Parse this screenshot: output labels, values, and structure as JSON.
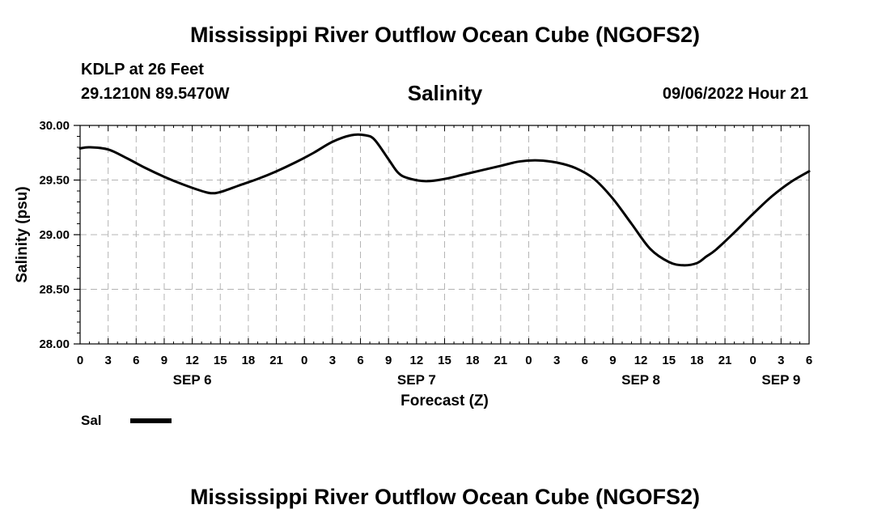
{
  "header": {
    "title": "Mississippi River Outflow Ocean Cube (NGOFS2)",
    "station": "KDLP at 26 Feet",
    "coords": "29.1210N  89.5470W",
    "subtitle": "Salinity",
    "datetime": "09/06/2022 Hour 21"
  },
  "footer": {
    "title": "Mississippi River Outflow Ocean Cube (NGOFS2)"
  },
  "legend": {
    "label": "Sal",
    "color": "#000000"
  },
  "chart_data": {
    "type": "line",
    "title": "Salinity",
    "xlabel": "Forecast (Z)",
    "ylabel": "Salinity (psu)",
    "x_unit": "hours since SEP 6 00Z",
    "xlim": [
      0,
      78
    ],
    "ylim": [
      28.0,
      30.0
    ],
    "grid": true,
    "x_ticks": [
      0,
      3,
      6,
      9,
      12,
      15,
      18,
      21,
      24,
      27,
      30,
      33,
      36,
      39,
      42,
      45,
      48,
      51,
      54,
      57,
      60,
      63,
      66,
      69,
      72,
      75,
      78
    ],
    "x_tick_labels": [
      "0",
      "3",
      "6",
      "9",
      "12",
      "15",
      "18",
      "21",
      "0",
      "3",
      "6",
      "9",
      "12",
      "15",
      "18",
      "21",
      "0",
      "3",
      "6",
      "9",
      "12",
      "15",
      "18",
      "21",
      "0",
      "3",
      "6"
    ],
    "y_ticks": [
      28.0,
      28.5,
      29.0,
      29.5,
      30.0
    ],
    "y_tick_labels": [
      "28.00",
      "28.50",
      "29.00",
      "29.50",
      "30.00"
    ],
    "day_labels": [
      {
        "label": "SEP 6",
        "x": 12
      },
      {
        "label": "SEP 7",
        "x": 36
      },
      {
        "label": "SEP 8",
        "x": 60
      },
      {
        "label": "SEP 9",
        "x": 75
      }
    ],
    "series": [
      {
        "name": "Sal",
        "color": "#000000",
        "x": [
          0,
          1,
          3,
          5,
          7,
          9,
          11,
          13,
          14,
          15,
          17,
          19,
          21,
          23,
          25,
          27,
          29,
          30.5,
          31.5,
          33,
          34,
          35,
          37,
          39,
          41,
          43,
          45,
          47,
          49,
          51,
          53,
          55,
          57,
          59,
          61,
          63,
          64.5,
          66,
          67,
          68,
          70,
          72,
          74,
          76,
          78
        ],
        "values": [
          29.79,
          29.8,
          29.78,
          29.7,
          29.61,
          29.53,
          29.46,
          29.4,
          29.38,
          29.39,
          29.45,
          29.51,
          29.58,
          29.66,
          29.75,
          29.85,
          29.91,
          29.91,
          29.87,
          29.69,
          29.57,
          29.52,
          29.49,
          29.51,
          29.55,
          29.59,
          29.63,
          29.67,
          29.68,
          29.66,
          29.61,
          29.51,
          29.33,
          29.1,
          28.87,
          28.75,
          28.72,
          28.74,
          28.8,
          28.86,
          29.02,
          29.19,
          29.35,
          29.48,
          29.58
        ]
      }
    ]
  }
}
